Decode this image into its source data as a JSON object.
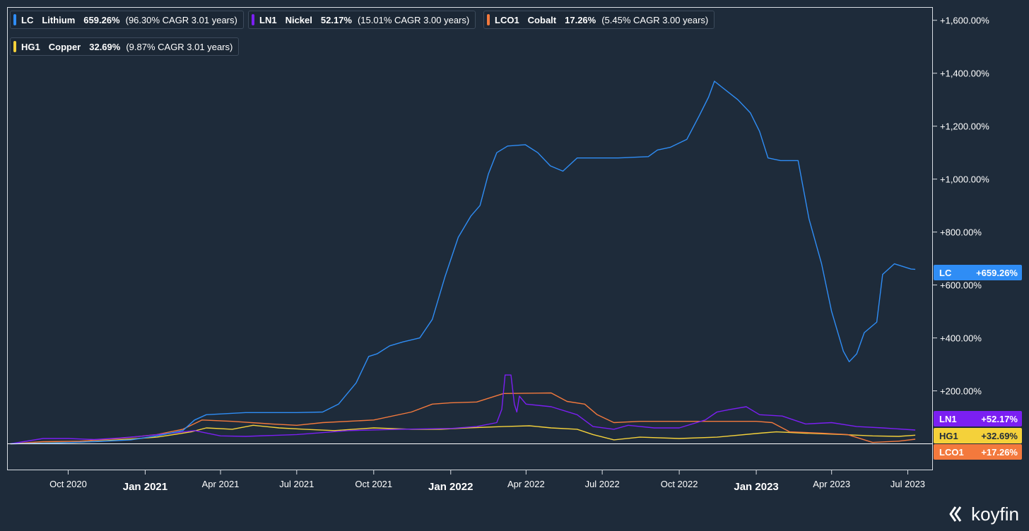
{
  "legend": [
    {
      "ticker": "LC",
      "name": "Lithium",
      "pct": "659.26%",
      "note": "(96.30% CAGR 3.01 years)",
      "color": "#2f8df5"
    },
    {
      "ticker": "LN1",
      "name": "Nickel",
      "pct": "52.17%",
      "note": "(15.01% CAGR 3.00 years)",
      "color": "#7b1ff2"
    },
    {
      "ticker": "LCO1",
      "name": "Cobalt",
      "pct": "17.26%",
      "note": "(5.45% CAGR 3.00 years)",
      "color": "#f3793d"
    },
    {
      "ticker": "HG1",
      "name": "Copper",
      "pct": "32.69%",
      "note": "(9.87% CAGR 3.01 years)",
      "color": "#f4d13a"
    }
  ],
  "tags": [
    {
      "ticker": "LC",
      "value": "+659.26%",
      "color": "#2f8df5",
      "text_color": "#ffffff"
    },
    {
      "ticker": "LN1",
      "value": "+52.17%",
      "color": "#7b1ff2",
      "text_color": "#ffffff"
    },
    {
      "ticker": "HG1",
      "value": "+32.69%",
      "color": "#f4d13a",
      "text_color": "#1e2b3a"
    },
    {
      "ticker": "LCO1",
      "value": "+17.26%",
      "color": "#f3793d",
      "text_color": "#ffffff"
    }
  ],
  "logo_text": "koyfin",
  "chart_data": {
    "type": "line",
    "y_unit": "% change",
    "ylim": [
      -100,
      1650
    ],
    "yticks": [
      {
        "v": 1600,
        "label": "+1,600.00%"
      },
      {
        "v": 1400,
        "label": "+1,400.00%"
      },
      {
        "v": 1200,
        "label": "+1,200.00%"
      },
      {
        "v": 1000,
        "label": "+1,000.00%"
      },
      {
        "v": 800,
        "label": "+800.00%"
      },
      {
        "v": 600,
        "label": "+600.00%"
      },
      {
        "v": 400,
        "label": "+400.00%"
      },
      {
        "v": 200,
        "label": "+200.00%"
      }
    ],
    "xlim": [
      "2020-07-20",
      "2023-07-31"
    ],
    "xticks": [
      {
        "date": "2020-10-01",
        "label": "Oct 2020",
        "major": false
      },
      {
        "date": "2021-01-01",
        "label": "Jan 2021",
        "major": true
      },
      {
        "date": "2021-04-01",
        "label": "Apr 2021",
        "major": false
      },
      {
        "date": "2021-07-01",
        "label": "Jul 2021",
        "major": false
      },
      {
        "date": "2021-10-01",
        "label": "Oct 2021",
        "major": false
      },
      {
        "date": "2022-01-01",
        "label": "Jan 2022",
        "major": true
      },
      {
        "date": "2022-04-01",
        "label": "Apr 2022",
        "major": false
      },
      {
        "date": "2022-07-01",
        "label": "Jul 2022",
        "major": false
      },
      {
        "date": "2022-10-01",
        "label": "Oct 2022",
        "major": false
      },
      {
        "date": "2023-01-01",
        "label": "Jan 2023",
        "major": true
      },
      {
        "date": "2023-04-01",
        "label": "Apr 2023",
        "major": false
      },
      {
        "date": "2023-07-01",
        "label": "Jul 2023",
        "major": false
      }
    ],
    "grid": false,
    "legend_position": "top-left",
    "series": [
      {
        "name": "LC",
        "color": "#2f8df5",
        "points": [
          [
            "2020-07-24",
            0
          ],
          [
            "2020-09-15",
            3
          ],
          [
            "2020-11-01",
            8
          ],
          [
            "2020-12-15",
            15
          ],
          [
            "2021-01-15",
            30
          ],
          [
            "2021-02-15",
            50
          ],
          [
            "2021-03-01",
            90
          ],
          [
            "2021-03-15",
            110
          ],
          [
            "2021-05-01",
            118
          ],
          [
            "2021-07-01",
            118
          ],
          [
            "2021-08-01",
            120
          ],
          [
            "2021-08-20",
            150
          ],
          [
            "2021-09-10",
            230
          ],
          [
            "2021-09-25",
            330
          ],
          [
            "2021-10-05",
            340
          ],
          [
            "2021-10-20",
            370
          ],
          [
            "2021-11-05",
            385
          ],
          [
            "2021-11-25",
            400
          ],
          [
            "2021-12-10",
            470
          ],
          [
            "2021-12-25",
            630
          ],
          [
            "2022-01-10",
            780
          ],
          [
            "2022-01-25",
            860
          ],
          [
            "2022-02-05",
            900
          ],
          [
            "2022-02-15",
            1020
          ],
          [
            "2022-02-25",
            1100
          ],
          [
            "2022-03-10",
            1125
          ],
          [
            "2022-03-31",
            1130
          ],
          [
            "2022-04-15",
            1100
          ],
          [
            "2022-04-30",
            1050
          ],
          [
            "2022-05-15",
            1030
          ],
          [
            "2022-06-01",
            1080
          ],
          [
            "2022-06-20",
            1080
          ],
          [
            "2022-07-20",
            1080
          ],
          [
            "2022-08-25",
            1085
          ],
          [
            "2022-09-05",
            1110
          ],
          [
            "2022-09-20",
            1120
          ],
          [
            "2022-10-10",
            1150
          ],
          [
            "2022-10-25",
            1240
          ],
          [
            "2022-11-05",
            1310
          ],
          [
            "2022-11-12",
            1370
          ],
          [
            "2022-11-20",
            1350
          ],
          [
            "2022-12-10",
            1300
          ],
          [
            "2022-12-25",
            1250
          ],
          [
            "2023-01-05",
            1180
          ],
          [
            "2023-01-15",
            1080
          ],
          [
            "2023-01-30",
            1070
          ],
          [
            "2023-02-20",
            1070
          ],
          [
            "2023-03-05",
            850
          ],
          [
            "2023-03-20",
            680
          ],
          [
            "2023-04-01",
            500
          ],
          [
            "2023-04-15",
            350
          ],
          [
            "2023-04-22",
            310
          ],
          [
            "2023-05-01",
            340
          ],
          [
            "2023-05-10",
            420
          ],
          [
            "2023-05-25",
            460
          ],
          [
            "2023-06-01",
            640
          ],
          [
            "2023-06-15",
            680
          ],
          [
            "2023-07-05",
            660
          ],
          [
            "2023-07-10",
            659.26
          ]
        ]
      },
      {
        "name": "LN1",
        "color": "#7b1ff2",
        "points": [
          [
            "2020-07-24",
            0
          ],
          [
            "2020-09-01",
            20
          ],
          [
            "2020-10-01",
            20
          ],
          [
            "2020-11-01",
            16
          ],
          [
            "2020-12-01",
            22
          ],
          [
            "2021-01-01",
            30
          ],
          [
            "2021-02-01",
            40
          ],
          [
            "2021-03-01",
            50
          ],
          [
            "2021-04-01",
            30
          ],
          [
            "2021-05-01",
            28
          ],
          [
            "2021-07-01",
            35
          ],
          [
            "2021-09-01",
            50
          ],
          [
            "2021-11-01",
            55
          ],
          [
            "2022-01-01",
            58
          ],
          [
            "2022-02-01",
            65
          ],
          [
            "2022-02-25",
            80
          ],
          [
            "2022-03-03",
            130
          ],
          [
            "2022-03-07",
            260
          ],
          [
            "2022-03-14",
            260
          ],
          [
            "2022-03-18",
            150
          ],
          [
            "2022-03-21",
            120
          ],
          [
            "2022-03-24",
            180
          ],
          [
            "2022-04-01",
            150
          ],
          [
            "2022-05-01",
            140
          ],
          [
            "2022-06-01",
            110
          ],
          [
            "2022-06-20",
            65
          ],
          [
            "2022-07-15",
            55
          ],
          [
            "2022-08-01",
            70
          ],
          [
            "2022-09-01",
            60
          ],
          [
            "2022-10-01",
            60
          ],
          [
            "2022-11-01",
            90
          ],
          [
            "2022-11-15",
            120
          ],
          [
            "2022-12-01",
            130
          ],
          [
            "2022-12-20",
            140
          ],
          [
            "2023-01-05",
            110
          ],
          [
            "2023-02-01",
            105
          ],
          [
            "2023-03-01",
            75
          ],
          [
            "2023-04-01",
            80
          ],
          [
            "2023-05-01",
            65
          ],
          [
            "2023-06-01",
            60
          ],
          [
            "2023-07-10",
            52.17
          ]
        ]
      },
      {
        "name": "LCO1",
        "color": "#f3793d",
        "points": [
          [
            "2020-07-24",
            0
          ],
          [
            "2020-09-01",
            8
          ],
          [
            "2020-10-15",
            10
          ],
          [
            "2020-12-01",
            20
          ],
          [
            "2021-01-15",
            35
          ],
          [
            "2021-02-15",
            55
          ],
          [
            "2021-03-10",
            90
          ],
          [
            "2021-04-15",
            85
          ],
          [
            "2021-06-01",
            75
          ],
          [
            "2021-07-01",
            70
          ],
          [
            "2021-08-01",
            80
          ],
          [
            "2021-10-01",
            90
          ],
          [
            "2021-11-15",
            120
          ],
          [
            "2021-12-10",
            150
          ],
          [
            "2022-01-01",
            155
          ],
          [
            "2022-02-01",
            158
          ],
          [
            "2022-03-05",
            190
          ],
          [
            "2022-05-01",
            192
          ],
          [
            "2022-05-20",
            160
          ],
          [
            "2022-06-10",
            150
          ],
          [
            "2022-06-25",
            110
          ],
          [
            "2022-07-15",
            80
          ],
          [
            "2022-08-15",
            85
          ],
          [
            "2022-10-01",
            85
          ],
          [
            "2022-12-01",
            85
          ],
          [
            "2023-01-01",
            85
          ],
          [
            "2023-01-20",
            80
          ],
          [
            "2023-02-10",
            45
          ],
          [
            "2023-03-20",
            40
          ],
          [
            "2023-04-20",
            35
          ],
          [
            "2023-05-20",
            5
          ],
          [
            "2023-06-20",
            10
          ],
          [
            "2023-07-10",
            17.26
          ]
        ]
      },
      {
        "name": "HG1",
        "color": "#f4d13a",
        "points": [
          [
            "2020-07-24",
            0
          ],
          [
            "2020-09-01",
            3
          ],
          [
            "2020-10-15",
            6
          ],
          [
            "2020-12-01",
            15
          ],
          [
            "2021-01-15",
            25
          ],
          [
            "2021-02-25",
            45
          ],
          [
            "2021-03-15",
            60
          ],
          [
            "2021-04-15",
            55
          ],
          [
            "2021-05-10",
            70
          ],
          [
            "2021-06-10",
            60
          ],
          [
            "2021-07-10",
            55
          ],
          [
            "2021-08-15",
            50
          ],
          [
            "2021-10-01",
            60
          ],
          [
            "2021-11-15",
            55
          ],
          [
            "2021-12-20",
            55
          ],
          [
            "2022-01-20",
            60
          ],
          [
            "2022-03-05",
            65
          ],
          [
            "2022-04-05",
            68
          ],
          [
            "2022-05-01",
            60
          ],
          [
            "2022-06-01",
            55
          ],
          [
            "2022-06-20",
            35
          ],
          [
            "2022-07-15",
            15
          ],
          [
            "2022-08-15",
            25
          ],
          [
            "2022-10-01",
            20
          ],
          [
            "2022-11-15",
            25
          ],
          [
            "2023-01-05",
            40
          ],
          [
            "2023-01-25",
            45
          ],
          [
            "2023-03-01",
            40
          ],
          [
            "2023-04-15",
            35
          ],
          [
            "2023-05-20",
            30
          ],
          [
            "2023-06-20",
            28
          ],
          [
            "2023-07-10",
            32.69
          ]
        ]
      }
    ]
  }
}
